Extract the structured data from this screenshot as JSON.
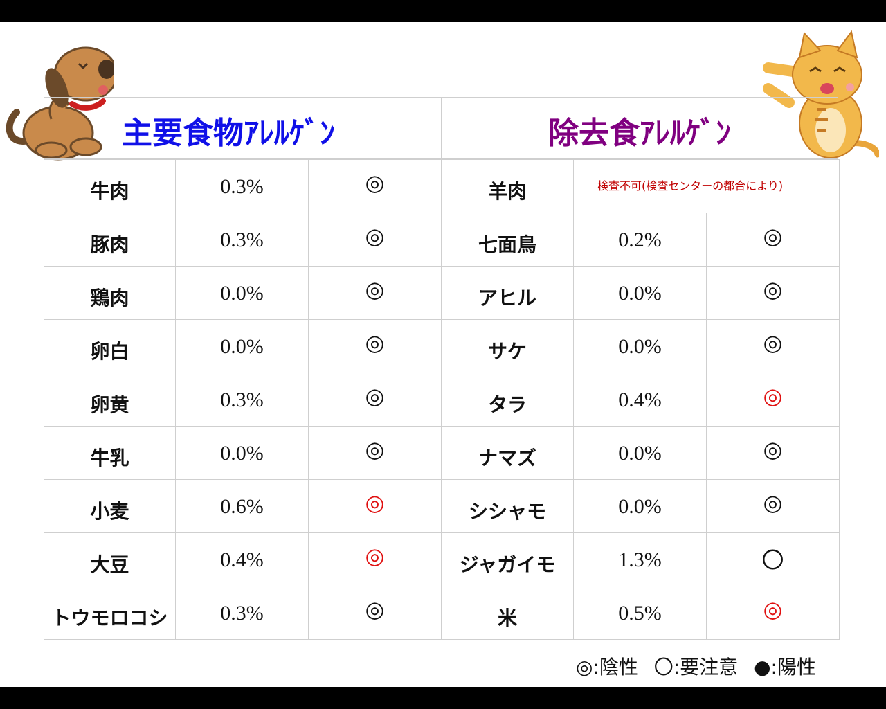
{
  "titles": {
    "left": "主要食物ｱﾚﾙｹﾞﾝ",
    "right": "除去食ｱﾚﾙｹﾞﾝ"
  },
  "rows": [
    {
      "left": {
        "food": "牛肉",
        "pct": "0.3%",
        "mark": "◎",
        "red": false
      },
      "right": {
        "food": "羊肉",
        "note": "検査不可(検査センターの都合により)"
      }
    },
    {
      "left": {
        "food": "豚肉",
        "pct": "0.3%",
        "mark": "◎",
        "red": false
      },
      "right": {
        "food": "七面鳥",
        "pct": "0.2%",
        "mark": "◎",
        "red": false
      }
    },
    {
      "left": {
        "food": "鶏肉",
        "pct": "0.0%",
        "mark": "◎",
        "red": false
      },
      "right": {
        "food": "アヒル",
        "pct": "0.0%",
        "mark": "◎",
        "red": false
      }
    },
    {
      "left": {
        "food": "卵白",
        "pct": "0.0%",
        "mark": "◎",
        "red": false
      },
      "right": {
        "food": "サケ",
        "pct": "0.0%",
        "mark": "◎",
        "red": false
      }
    },
    {
      "left": {
        "food": "卵黄",
        "pct": "0.3%",
        "mark": "◎",
        "red": false
      },
      "right": {
        "food": "タラ",
        "pct": "0.4%",
        "mark": "◎",
        "red": true
      }
    },
    {
      "left": {
        "food": "牛乳",
        "pct": "0.0%",
        "mark": "◎",
        "red": false
      },
      "right": {
        "food": "ナマズ",
        "pct": "0.0%",
        "mark": "◎",
        "red": false
      }
    },
    {
      "left": {
        "food": "小麦",
        "pct": "0.6%",
        "mark": "◎",
        "red": true
      },
      "right": {
        "food": "シシャモ",
        "pct": "0.0%",
        "mark": "◎",
        "red": false
      }
    },
    {
      "left": {
        "food": "大豆",
        "pct": "0.4%",
        "mark": "◎",
        "red": true
      },
      "right": {
        "food": "ジャガイモ",
        "pct": "1.3%",
        "mark": "〇",
        "red": false
      }
    },
    {
      "left": {
        "food": "トウモロコシ",
        "pct": "0.3%",
        "mark": "◎",
        "red": false
      },
      "right": {
        "food": "米",
        "pct": "0.5%",
        "mark": "◎",
        "red": true
      }
    }
  ],
  "legend": {
    "negative": "◎:陰性",
    "caution": "〇:要注意",
    "positive": "●:陽性"
  },
  "colors": {
    "title_left": "#1010e8",
    "title_right": "#800080",
    "alert_red": "#e01010",
    "note_red": "#c00000"
  },
  "illustrations": {
    "left": "dog-scratching",
    "right": "tabby-cat-paw"
  }
}
